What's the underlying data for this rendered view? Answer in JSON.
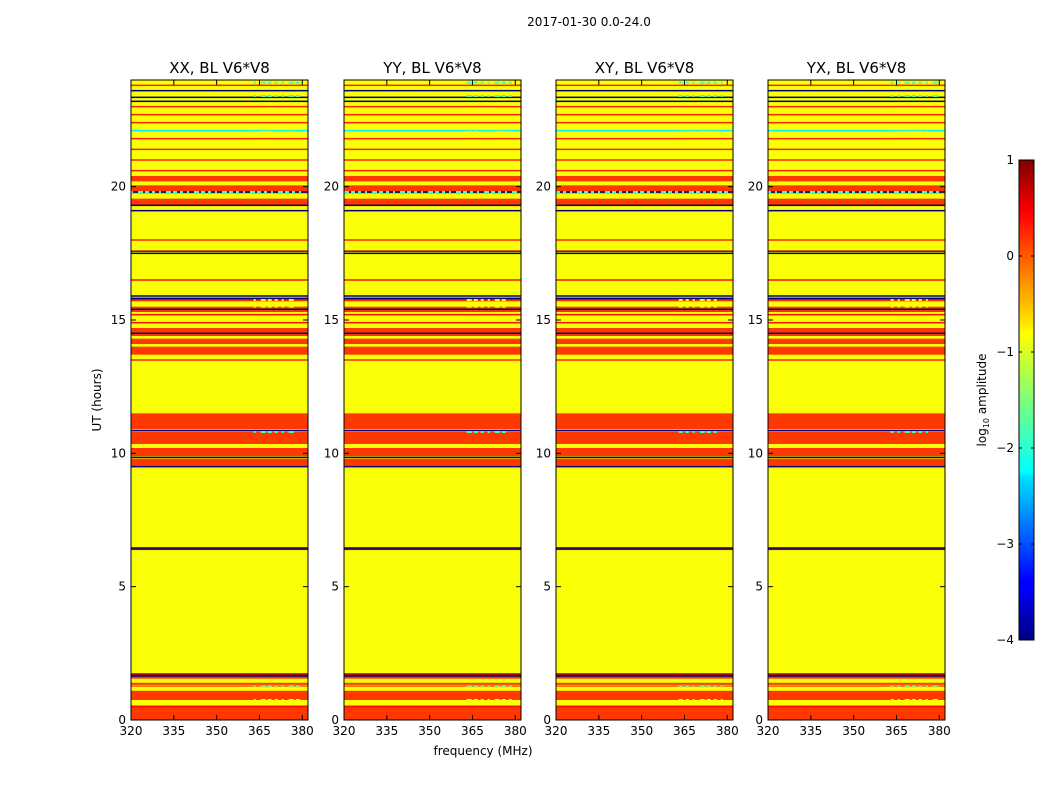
{
  "chart_data": {
    "type": "heatmap",
    "title": "2017-01-30 0.0-24.0",
    "xlabel": "frequency (MHz)",
    "ylabel": "UT (hours)",
    "xlim": [
      320,
      382
    ],
    "ylim": [
      0,
      24
    ],
    "xticks": [
      "320",
      "335",
      "350",
      "365",
      "380"
    ],
    "xtick_values": [
      320,
      335,
      350,
      365,
      380
    ],
    "yticks": [
      "0",
      "5",
      "10",
      "15",
      "20"
    ],
    "ytick_values": [
      0,
      5,
      10,
      15,
      20
    ],
    "panels": [
      {
        "title": "XX, BL V6*V8"
      },
      {
        "title": "YY, BL V6*V8"
      },
      {
        "title": "XY, BL V6*V8"
      },
      {
        "title": "YX, BL V6*V8"
      }
    ],
    "colorbar": {
      "label_prefix": "log",
      "label_sub": "10",
      "label_suffix": " amplitude",
      "range": [
        -4,
        1
      ],
      "ticks": [
        "1",
        "0",
        "−1",
        "−2",
        "−3",
        "−4"
      ],
      "tick_values": [
        1,
        0,
        -1,
        -2,
        -3,
        -4
      ]
    },
    "base_value": -0.9,
    "bands": [
      {
        "t0": 0.0,
        "t1": 0.55,
        "value": 0.1
      },
      {
        "t0": 0.55,
        "t1": 0.75,
        "value": -0.9
      },
      {
        "t0": 0.75,
        "t1": 1.1,
        "value": 0.1
      },
      {
        "t0": 1.1,
        "t1": 1.25,
        "value": -0.9
      },
      {
        "t0": 1.25,
        "t1": 1.4,
        "value": 0.1
      },
      {
        "t0": 1.4,
        "t1": 1.55,
        "value": -0.9
      },
      {
        "t0": 1.55,
        "t1": 1.75,
        "value": 0.1
      },
      {
        "t0": 9.5,
        "t1": 9.8,
        "value": 0.1
      },
      {
        "t0": 9.9,
        "t1": 10.2,
        "value": 0.1
      },
      {
        "t0": 10.35,
        "t1": 10.8,
        "value": 0.1
      },
      {
        "t0": 10.9,
        "t1": 11.5,
        "value": 0.1
      },
      {
        "t0": 13.7,
        "t1": 14.0,
        "value": 0.1
      },
      {
        "t0": 14.1,
        "t1": 14.3,
        "value": 0.1
      },
      {
        "t0": 14.4,
        "t1": 14.7,
        "value": 0.1
      },
      {
        "t0": 15.3,
        "t1": 15.5,
        "value": 0.1
      },
      {
        "t0": 15.7,
        "t1": 15.85,
        "value": 0.1
      },
      {
        "t0": 19.3,
        "t1": 19.55,
        "value": 0.1
      },
      {
        "t0": 19.75,
        "t1": 20.05,
        "value": 0.1
      },
      {
        "t0": 20.2,
        "t1": 20.4,
        "value": 0.1
      }
    ],
    "lines": [
      {
        "t": 0.5,
        "value": 0.3
      },
      {
        "t": 1.3,
        "value": -0.3
      },
      {
        "t": 1.65,
        "value": -4.0
      },
      {
        "t": 1.72,
        "value": 0.9
      },
      {
        "t": 6.4,
        "value": 0.9
      },
      {
        "t": 6.45,
        "value": -4.0
      },
      {
        "t": 9.5,
        "value": -4.0
      },
      {
        "t": 9.85,
        "value": -4.0
      },
      {
        "t": 10.85,
        "value": -4.0
      },
      {
        "t": 12.0,
        "value": -0.9
      },
      {
        "t": 13.5,
        "value": 0.2
      },
      {
        "t": 14.5,
        "value": -4.0
      },
      {
        "t": 14.9,
        "value": 0.3
      },
      {
        "t": 15.2,
        "value": 0.3
      },
      {
        "t": 15.4,
        "value": -4.0
      },
      {
        "t": 15.8,
        "value": -4.0
      },
      {
        "t": 15.9,
        "value": -4.0
      },
      {
        "t": 16.5,
        "value": 0.3
      },
      {
        "t": 17.5,
        "value": -4.0
      },
      {
        "t": 17.58,
        "value": 0.8
      },
      {
        "t": 18.0,
        "value": 0.2
      },
      {
        "t": 19.1,
        "value": -4.0
      },
      {
        "t": 19.3,
        "value": -4.0
      },
      {
        "t": 19.8,
        "value": -4.0
      },
      {
        "t": 20.6,
        "value": 0.2
      },
      {
        "t": 21.0,
        "value": 0.2
      },
      {
        "t": 21.4,
        "value": 0.2
      },
      {
        "t": 21.8,
        "value": 0.2
      },
      {
        "t": 22.1,
        "value": -2.2
      },
      {
        "t": 22.4,
        "value": 0.2
      },
      {
        "t": 22.7,
        "value": 0.2
      },
      {
        "t": 23.0,
        "value": 0.2
      },
      {
        "t": 23.2,
        "value": -4.0
      },
      {
        "t": 23.35,
        "value": -4.0
      },
      {
        "t": 23.6,
        "value": -4.0
      },
      {
        "t": 23.8,
        "value": 0.2
      }
    ],
    "speckles": [
      {
        "t": 1.25,
        "f0": 363,
        "f1": 382,
        "value": -1.5
      },
      {
        "t": 0.75,
        "f0": 363,
        "f1": 382,
        "value": -1.0
      },
      {
        "t": 10.8,
        "f0": 363,
        "f1": 378,
        "value": -1.8
      },
      {
        "t": 15.5,
        "f0": 363,
        "f1": 378,
        "value": -1.0
      },
      {
        "t": 15.75,
        "f0": 363,
        "f1": 378,
        "value": -0.8
      },
      {
        "t": 19.8,
        "f0": 320,
        "f1": 382,
        "value": -1.8
      },
      {
        "t": 22.1,
        "f0": 363,
        "f1": 378,
        "value": -1.8
      },
      {
        "t": 23.4,
        "f0": 363,
        "f1": 382,
        "value": -1.8
      },
      {
        "t": 23.9,
        "f0": 363,
        "f1": 382,
        "value": -1.8
      }
    ]
  }
}
